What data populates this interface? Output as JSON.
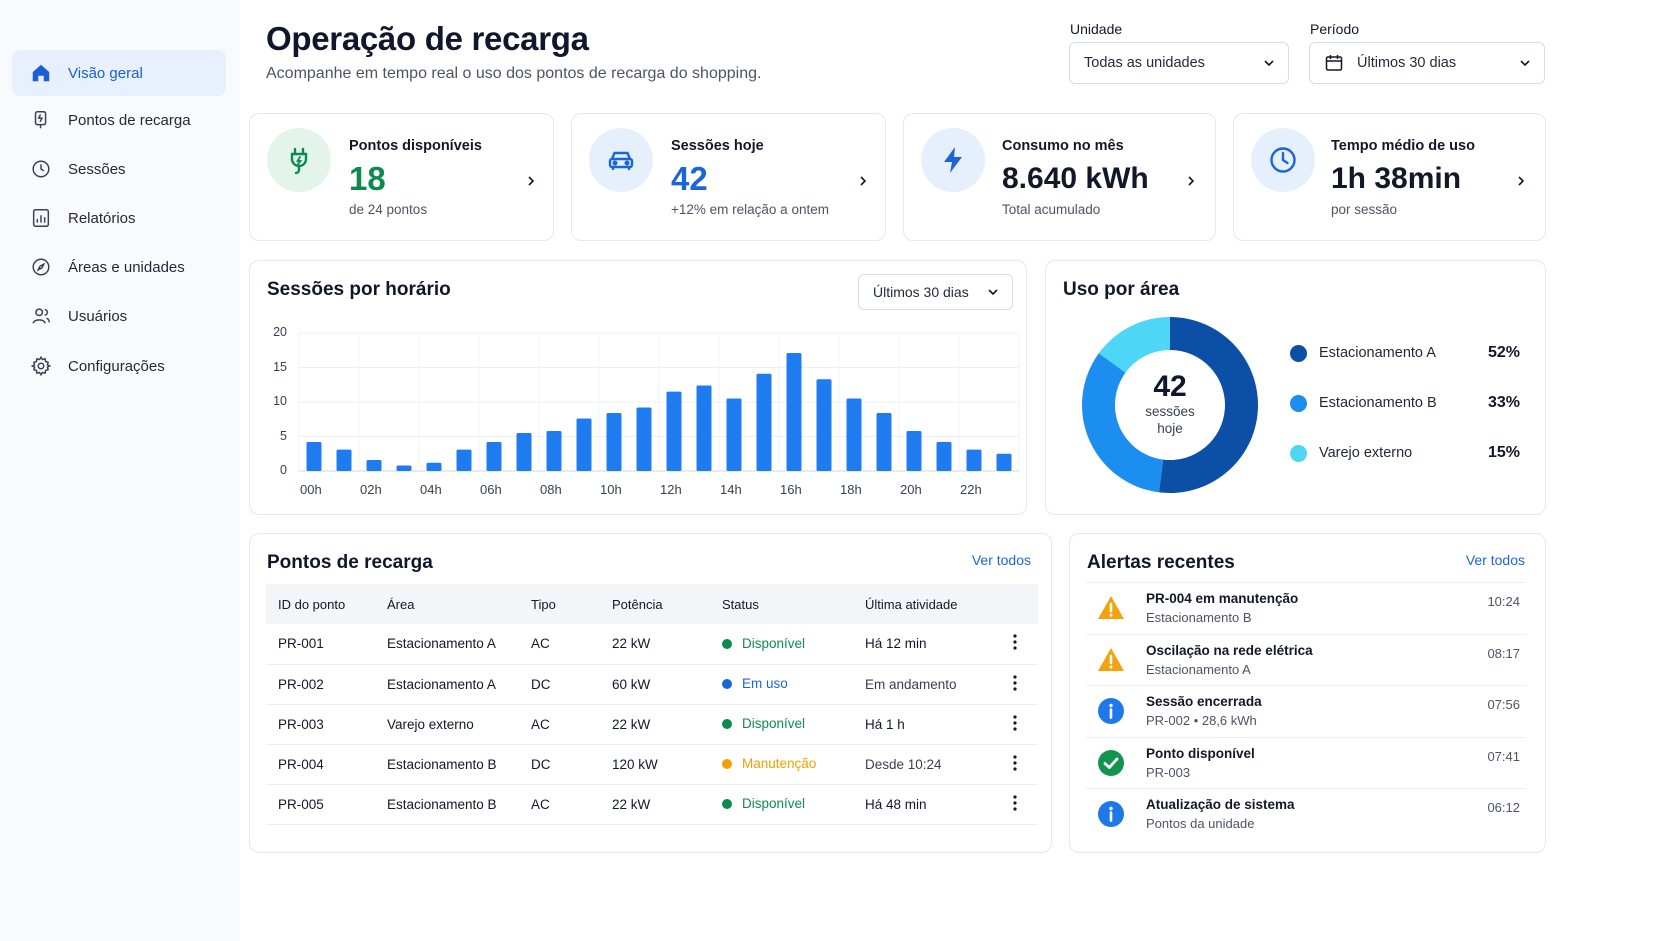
{
  "sidebar": {
    "items": [
      {
        "label": "Visão geral",
        "icon": "home-icon",
        "active": true
      },
      {
        "label": "Pontos de recarga",
        "icon": "charger-icon"
      },
      {
        "label": "Sessões",
        "icon": "clock-icon"
      },
      {
        "label": "Relatórios",
        "icon": "report-icon"
      },
      {
        "label": "Áreas e unidades",
        "icon": "compass-icon"
      },
      {
        "label": "Usuários",
        "icon": "users-icon"
      },
      {
        "label": "Configurações",
        "icon": "gear-icon"
      }
    ]
  },
  "header": {
    "title": "Operação de recarga",
    "subtitle": "Acompanhe em tempo real o uso dos pontos de recarga do shopping."
  },
  "filters": {
    "unit_label": "Unidade",
    "unit_value": "Todas as unidades",
    "period_label": "Período",
    "period_value": "Últimos 30 dias"
  },
  "kpis": [
    {
      "title": "Pontos disponíveis",
      "value": "18",
      "sub": "de 24 pontos",
      "color": "#0e8a4f",
      "icon": "plug-icon"
    },
    {
      "title": "Sessões hoje",
      "value": "42",
      "sub": "+12% em relação a ontem",
      "color": "#1a66d9",
      "icon": "car-icon"
    },
    {
      "title": "Consumo no mês",
      "value": "8.640 kWh",
      "sub": "Total acumulado",
      "color": "#111827",
      "icon": "bolt-icon"
    },
    {
      "title": "Tempo médio de uso",
      "value": "1h 38min",
      "sub": "por sessão",
      "color": "#111827",
      "icon": "clock-icon"
    }
  ],
  "sessions_chart": {
    "title": "Sessões por horário",
    "period_select": "Últimos 30 dias"
  },
  "chart_data": {
    "type": "bar",
    "categories": [
      "00h",
      "01h",
      "02h",
      "03h",
      "04h",
      "05h",
      "06h",
      "07h",
      "08h",
      "09h",
      "10h",
      "11h",
      "12h",
      "13h",
      "14h",
      "15h",
      "16h",
      "17h",
      "18h",
      "19h",
      "20h",
      "21h",
      "22h",
      "23h"
    ],
    "tick_labels": [
      "00h",
      "02h",
      "04h",
      "06h",
      "08h",
      "10h",
      "12h",
      "14h",
      "16h",
      "18h",
      "20h",
      "22h"
    ],
    "values": [
      4.2,
      3.1,
      1.6,
      0.8,
      1.2,
      3.1,
      4.2,
      5.5,
      5.8,
      7.6,
      8.4,
      9.2,
      11.5,
      12.4,
      10.5,
      14.1,
      17.1,
      13.3,
      10.5,
      8.4,
      5.8,
      4.2,
      3.1,
      2.5
    ],
    "yticks": [
      0,
      5,
      10,
      15,
      20
    ],
    "ylim": [
      0,
      20
    ],
    "grid": true,
    "color": "#1f7cf0"
  },
  "area_usage": {
    "title": "Uso por área",
    "center_value": "42",
    "center_label_1": "sessões",
    "center_label_2": "hoje",
    "slices": [
      {
        "name": "Estacionamento A",
        "pct_label": "52%",
        "value": 52,
        "color": "#0b4fa6"
      },
      {
        "name": "Estacionamento B",
        "pct_label": "33%",
        "value": 33,
        "color": "#1b8ef0"
      },
      {
        "name": "Varejo externo",
        "pct_label": "15%",
        "value": 15,
        "color": "#4dd6f5"
      }
    ]
  },
  "points_table": {
    "title": "Pontos de recarga",
    "see_all": "Ver todos",
    "columns": [
      "ID do ponto",
      "Área",
      "Tipo",
      "Potência",
      "Status",
      "Última atividade"
    ],
    "rows": [
      {
        "id": "PR-001",
        "area": "Estacionamento A",
        "type": "AC",
        "power": "22 kW",
        "status": "Disponível",
        "status_color": "#0e8a4f",
        "last": "Há 12 min"
      },
      {
        "id": "PR-002",
        "area": "Estacionamento A",
        "type": "DC",
        "power": "60 kW",
        "status": "Em uso",
        "status_color": "#1a66d9",
        "last": "Em andamento"
      },
      {
        "id": "PR-003",
        "area": "Varejo externo",
        "type": "AC",
        "power": "22 kW",
        "status": "Disponível",
        "status_color": "#0e8a4f",
        "last": "Há 1 h"
      },
      {
        "id": "PR-004",
        "area": "Estacionamento B",
        "type": "DC",
        "power": "120 kW",
        "status": "Manutenção",
        "status_color": "#f0a000",
        "last": "Desde 10:24"
      },
      {
        "id": "PR-005",
        "area": "Estacionamento B",
        "type": "AC",
        "power": "22 kW",
        "status": "Disponível",
        "status_color": "#0e8a4f",
        "last": "Há 48 min"
      }
    ]
  },
  "alerts": {
    "title": "Alertas recentes",
    "see_all": "Ver todos",
    "items": [
      {
        "title": "PR-004 em manutenção",
        "sub": "Estacionamento B",
        "time": "10:24",
        "icon": "warning-icon"
      },
      {
        "title": "Oscilação na rede elétrica",
        "sub": "Estacionamento A",
        "time": "08:17",
        "icon": "warning-icon"
      },
      {
        "title": "Sessão encerrada",
        "sub": "PR-002 • 28,6 kWh",
        "time": "07:56",
        "icon": "info-icon"
      },
      {
        "title": "Ponto disponível",
        "sub": "PR-003",
        "time": "07:41",
        "icon": "check-icon"
      },
      {
        "title": "Atualização de sistema",
        "sub": "Pontos da unidade",
        "time": "06:12",
        "icon": "info-icon"
      }
    ]
  }
}
